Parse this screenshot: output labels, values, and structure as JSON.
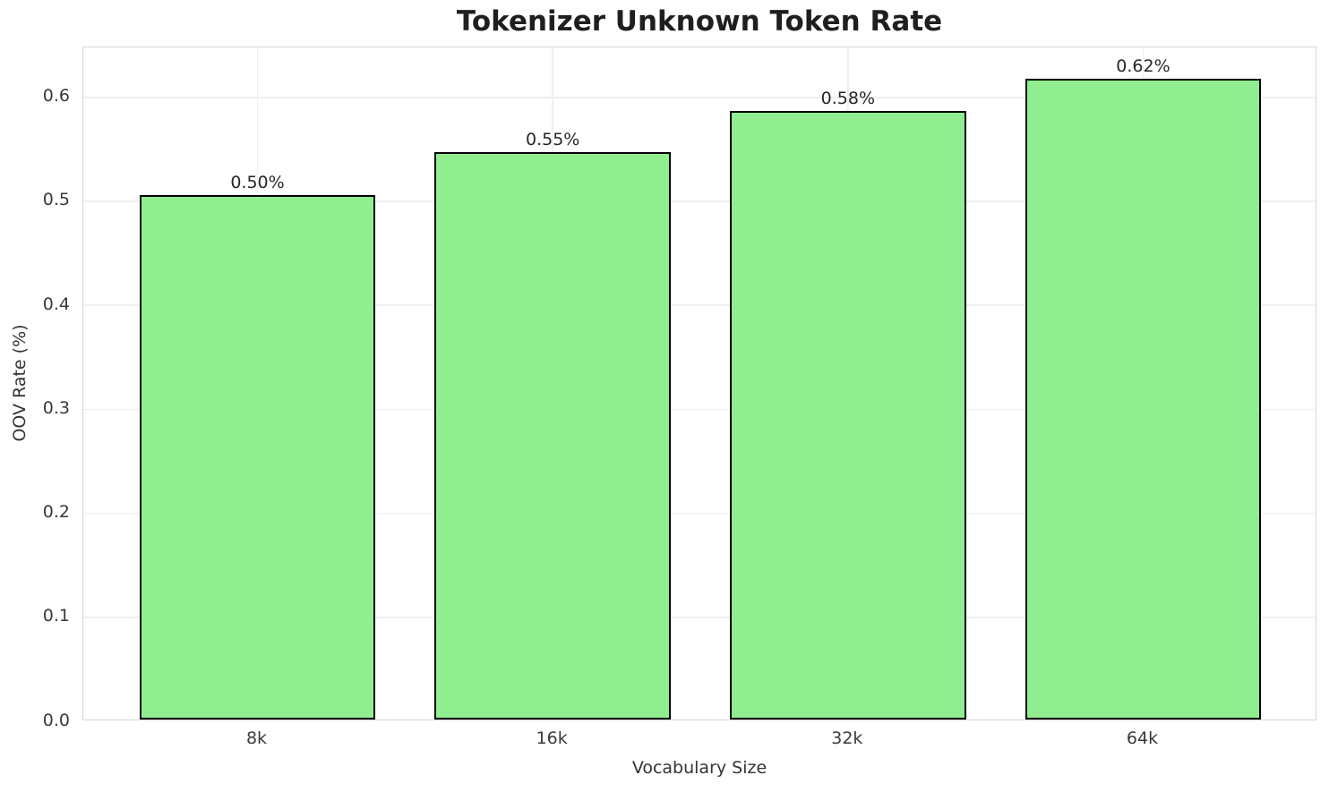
{
  "chart_data": {
    "type": "bar",
    "title": "Tokenizer Unknown Token Rate",
    "xlabel": "Vocabulary Size",
    "ylabel": "OOV Rate (%)",
    "categories": [
      "8k",
      "16k",
      "32k",
      "64k"
    ],
    "values": [
      0.504,
      0.546,
      0.585,
      0.616
    ],
    "bar_labels": [
      "0.50%",
      "0.55%",
      "0.58%",
      "0.62%"
    ],
    "ylim": [
      0,
      0.648
    ],
    "yticks": [
      0.0,
      0.1,
      0.2,
      0.3,
      0.4,
      0.5,
      0.6
    ],
    "ytick_labels": [
      "0.0",
      "0.1",
      "0.2",
      "0.3",
      "0.4",
      "0.5",
      "0.6"
    ],
    "grid": true,
    "legend": "none",
    "colors": {
      "bar_fill": "#90EE90",
      "bar_edge": "#000000",
      "grid": "#efefef",
      "spine": "#d6d6d6",
      "title_text": "#1f1f1f",
      "tick_text": "#3a3a3a"
    }
  }
}
